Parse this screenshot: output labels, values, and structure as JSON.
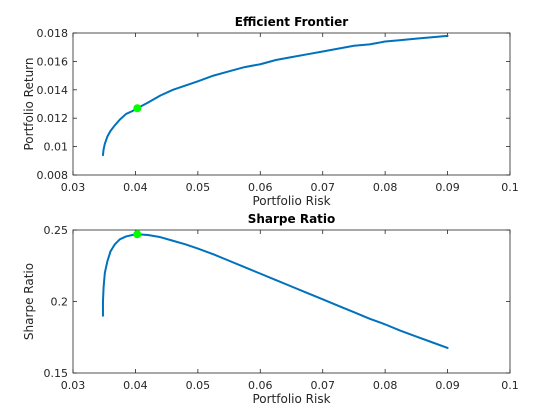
{
  "chart_data": [
    {
      "type": "line",
      "title": "Efficient Frontier",
      "xlabel": "Portfolio Risk",
      "ylabel": "Portfolio Return",
      "xlim": [
        0.03,
        0.1
      ],
      "ylim": [
        0.008,
        0.018
      ],
      "xticks": [
        0.03,
        0.04,
        0.05,
        0.06,
        0.07,
        0.08,
        0.09,
        0.1
      ],
      "xtick_labels": [
        "0.03",
        "0.04",
        "0.05",
        "0.06",
        "0.07",
        "0.08",
        "0.09",
        "0.1"
      ],
      "yticks": [
        0.008,
        0.01,
        0.012,
        0.014,
        0.016,
        0.018
      ],
      "ytick_labels": [
        "0.008",
        "0.01",
        "0.012",
        "0.014",
        "0.016",
        "0.018"
      ],
      "grid": false,
      "series": [
        {
          "color": "#0072BD",
          "x": [
            0.0348,
            0.0349,
            0.0351,
            0.0355,
            0.036,
            0.0367,
            0.0375,
            0.0385,
            0.0395,
            0.0403,
            0.042,
            0.044,
            0.046,
            0.048,
            0.05,
            0.0525,
            0.055,
            0.0575,
            0.06,
            0.0625,
            0.065,
            0.0675,
            0.07,
            0.0725,
            0.075,
            0.0775,
            0.08,
            0.0825,
            0.085,
            0.0875,
            0.09
          ],
          "y": [
            0.0094,
            0.0098,
            0.0102,
            0.0107,
            0.0111,
            0.0115,
            0.0119,
            0.0123,
            0.0125,
            0.0127,
            0.0131,
            0.0136,
            0.014,
            0.0143,
            0.0146,
            0.015,
            0.0153,
            0.0156,
            0.0158,
            0.0161,
            0.0163,
            0.0165,
            0.0167,
            0.0169,
            0.0171,
            0.0172,
            0.0174,
            0.0175,
            0.0176,
            0.0177,
            0.0178
          ]
        }
      ],
      "marker": {
        "x": 0.0403,
        "y": 0.0127,
        "color": "#00FF00"
      }
    },
    {
      "type": "line",
      "title": "Sharpe Ratio",
      "xlabel": "Portfolio Risk",
      "ylabel": "Sharpe Ratio",
      "xlim": [
        0.03,
        0.1
      ],
      "ylim": [
        0.15,
        0.25
      ],
      "xticks": [
        0.03,
        0.04,
        0.05,
        0.06,
        0.07,
        0.08,
        0.09,
        0.1
      ],
      "xtick_labels": [
        "0.03",
        "0.04",
        "0.05",
        "0.06",
        "0.07",
        "0.08",
        "0.09",
        "0.1"
      ],
      "yticks": [
        0.15,
        0.2,
        0.25
      ],
      "ytick_labels": [
        "0.15",
        "0.2",
        "0.25"
      ],
      "grid": false,
      "series": [
        {
          "color": "#0072BD",
          "x": [
            0.0348,
            0.0348,
            0.0349,
            0.0351,
            0.0355,
            0.036,
            0.0367,
            0.0375,
            0.0385,
            0.0395,
            0.0403,
            0.042,
            0.044,
            0.046,
            0.048,
            0.05,
            0.0525,
            0.055,
            0.0575,
            0.06,
            0.0625,
            0.065,
            0.0675,
            0.07,
            0.0725,
            0.075,
            0.0775,
            0.08,
            0.0825,
            0.085,
            0.0875,
            0.09
          ],
          "y": [
            0.19,
            0.2,
            0.21,
            0.22,
            0.228,
            0.235,
            0.24,
            0.2435,
            0.2455,
            0.2465,
            0.247,
            0.2465,
            0.245,
            0.2425,
            0.24,
            0.237,
            0.233,
            0.2285,
            0.224,
            0.2195,
            0.215,
            0.2105,
            0.206,
            0.2015,
            0.197,
            0.1925,
            0.188,
            0.184,
            0.1795,
            0.1755,
            0.1715,
            0.1675
          ]
        }
      ],
      "marker": {
        "x": 0.0403,
        "y": 0.247,
        "color": "#00FF00"
      }
    }
  ]
}
